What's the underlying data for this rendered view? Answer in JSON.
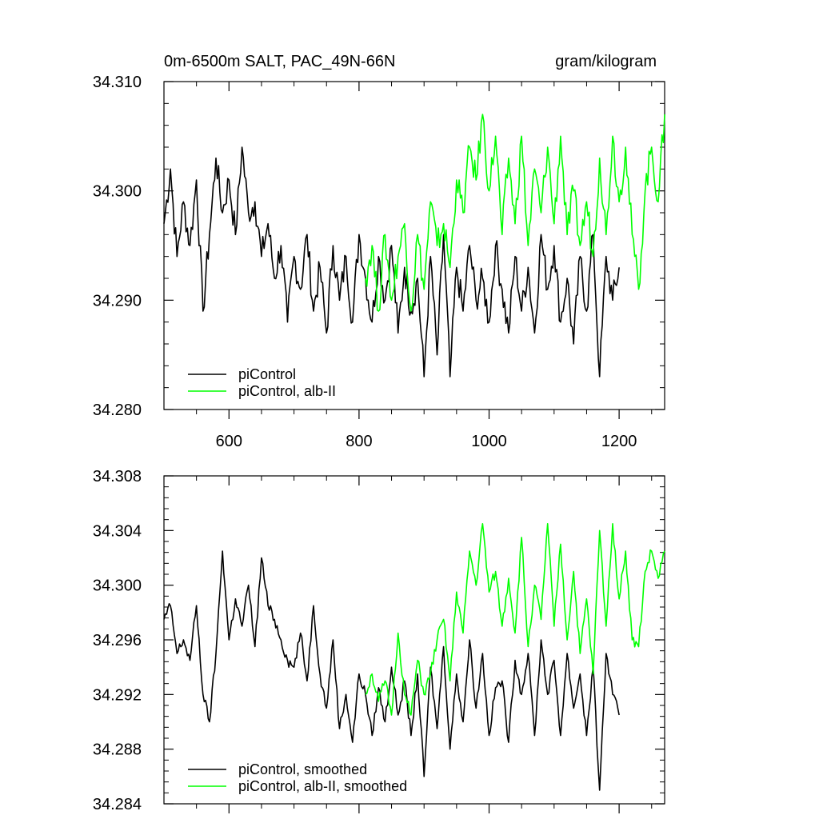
{
  "figure": {
    "colors": {
      "series_black": "#000000",
      "series_green": "#00ff00",
      "axis": "#000000"
    }
  },
  "chart_data": [
    {
      "type": "line",
      "title_left": "0m-6500m SALT, PAC_49N-66N",
      "title_right": "gram/kilogram",
      "xlabel": "",
      "ylabel": "",
      "xlim": [
        500,
        1270
      ],
      "ylim": [
        34.28,
        34.31
      ],
      "xticks": [
        600,
        800,
        1000,
        1200
      ],
      "xtick_labels": [
        "600",
        "800",
        "1000",
        "1200"
      ],
      "yticks": [
        34.28,
        34.29,
        34.3,
        34.31
      ],
      "ytick_labels": [
        "34.280",
        "34.290",
        "34.300",
        "34.310"
      ],
      "legend": [
        "piControl",
        "piControl, alb-II"
      ],
      "legend_location": "lower-left",
      "series": [
        {
          "name": "piControl",
          "color": "#000000",
          "x": [
            500,
            510,
            520,
            530,
            540,
            550,
            560,
            570,
            580,
            590,
            600,
            610,
            620,
            630,
            640,
            650,
            660,
            670,
            680,
            690,
            700,
            710,
            720,
            730,
            740,
            750,
            760,
            770,
            780,
            790,
            800,
            810,
            820,
            830,
            840,
            850,
            860,
            870,
            880,
            890,
            900,
            910,
            920,
            930,
            940,
            950,
            960,
            970,
            980,
            990,
            1000,
            1010,
            1020,
            1030,
            1040,
            1050,
            1060,
            1070,
            1080,
            1090,
            1100,
            1110,
            1120,
            1130,
            1140,
            1150,
            1160,
            1170,
            1180,
            1190,
            1200
          ],
          "values": [
            34.297,
            34.302,
            34.294,
            34.299,
            34.295,
            34.301,
            34.289,
            34.296,
            34.303,
            34.298,
            34.301,
            34.296,
            34.304,
            34.298,
            34.299,
            34.294,
            34.297,
            34.292,
            34.295,
            34.288,
            34.294,
            34.291,
            34.296,
            34.289,
            34.293,
            34.287,
            34.295,
            34.29,
            34.294,
            34.288,
            34.296,
            34.292,
            34.288,
            34.294,
            34.29,
            34.295,
            34.287,
            34.293,
            34.289,
            34.292,
            34.283,
            34.294,
            34.285,
            34.296,
            34.283,
            34.293,
            34.289,
            34.295,
            34.29,
            34.292,
            34.288,
            34.295,
            34.291,
            34.287,
            34.294,
            34.289,
            34.293,
            34.287,
            34.296,
            34.291,
            34.295,
            34.288,
            34.292,
            34.286,
            34.294,
            34.289,
            34.296,
            34.283,
            34.294,
            34.29,
            34.293
          ]
        },
        {
          "name": "piControl, alb-II",
          "color": "#00ff00",
          "x": [
            810,
            820,
            830,
            840,
            850,
            860,
            870,
            880,
            890,
            900,
            910,
            920,
            930,
            940,
            950,
            960,
            970,
            980,
            990,
            1000,
            1010,
            1020,
            1030,
            1040,
            1050,
            1060,
            1070,
            1080,
            1090,
            1100,
            1110,
            1120,
            1130,
            1140,
            1150,
            1160,
            1170,
            1180,
            1190,
            1200,
            1210,
            1220,
            1230,
            1240,
            1250,
            1260,
            1270
          ],
          "values": [
            34.292,
            34.295,
            34.289,
            34.296,
            34.29,
            34.294,
            34.297,
            34.289,
            34.296,
            34.291,
            34.299,
            34.295,
            34.297,
            34.293,
            34.301,
            34.298,
            34.304,
            34.301,
            34.307,
            34.3,
            34.305,
            34.296,
            34.303,
            34.297,
            34.305,
            34.295,
            34.302,
            34.298,
            34.304,
            34.297,
            34.305,
            34.296,
            34.3,
            34.295,
            34.299,
            34.294,
            34.303,
            34.296,
            34.305,
            34.299,
            34.304,
            34.296,
            34.291,
            34.3,
            34.304,
            34.299,
            34.307
          ]
        }
      ]
    },
    {
      "type": "line",
      "xlabel": "",
      "ylabel": "",
      "xlim": [
        500,
        1270
      ],
      "ylim": [
        34.284,
        34.308
      ],
      "xticks": [
        600,
        800,
        1000,
        1200
      ],
      "yticks": [
        34.284,
        34.288,
        34.292,
        34.296,
        34.3,
        34.304,
        34.308
      ],
      "ytick_labels": [
        "34.284",
        "34.288",
        "34.292",
        "34.296",
        "34.300",
        "34.304",
        "34.308"
      ],
      "legend": [
        "piControl, smoothed",
        "piControl, alb-II, smoothed"
      ],
      "legend_location": "lower-left",
      "series": [
        {
          "name": "piControl, smoothed",
          "color": "#000000",
          "x": [
            500,
            510,
            520,
            530,
            540,
            550,
            560,
            570,
            580,
            590,
            600,
            610,
            620,
            630,
            640,
            650,
            660,
            670,
            680,
            690,
            700,
            710,
            720,
            730,
            740,
            750,
            760,
            770,
            780,
            790,
            800,
            810,
            820,
            830,
            840,
            850,
            860,
            870,
            880,
            890,
            900,
            910,
            920,
            930,
            940,
            950,
            960,
            970,
            980,
            990,
            1000,
            1010,
            1020,
            1030,
            1040,
            1050,
            1060,
            1070,
            1080,
            1090,
            1100,
            1110,
            1120,
            1130,
            1140,
            1150,
            1160,
            1170,
            1180,
            1190,
            1200
          ],
          "values": [
            34.2975,
            34.2985,
            34.295,
            34.296,
            34.2945,
            34.2985,
            34.292,
            34.29,
            34.295,
            34.3025,
            34.296,
            34.299,
            34.297,
            34.3,
            34.2955,
            34.302,
            34.2985,
            34.2975,
            34.296,
            34.2945,
            34.294,
            34.2965,
            34.293,
            34.2985,
            34.2935,
            34.291,
            34.296,
            34.2895,
            34.292,
            34.2885,
            34.2935,
            34.292,
            34.289,
            34.2925,
            34.29,
            34.294,
            34.2905,
            34.293,
            34.289,
            34.2935,
            34.286,
            34.294,
            34.2895,
            34.2955,
            34.288,
            34.2935,
            34.29,
            34.296,
            34.291,
            34.295,
            34.289,
            34.2925,
            34.293,
            34.2885,
            34.2945,
            34.292,
            34.295,
            34.289,
            34.296,
            34.292,
            34.2945,
            34.289,
            34.295,
            34.291,
            34.2935,
            34.289,
            34.294,
            34.285,
            34.295,
            34.292,
            34.2905
          ]
        },
        {
          "name": "piControl, alb-II, smoothed",
          "color": "#00ff00",
          "x": [
            810,
            820,
            830,
            840,
            850,
            860,
            870,
            880,
            890,
            900,
            910,
            920,
            930,
            940,
            950,
            960,
            970,
            980,
            990,
            1000,
            1010,
            1020,
            1030,
            1040,
            1050,
            1060,
            1070,
            1080,
            1090,
            1100,
            1110,
            1120,
            1130,
            1140,
            1150,
            1160,
            1170,
            1180,
            1190,
            1200,
            1210,
            1220,
            1230,
            1240,
            1250,
            1260,
            1270
          ],
          "values": [
            34.292,
            34.2935,
            34.2915,
            34.293,
            34.2905,
            34.2965,
            34.292,
            34.2905,
            34.2945,
            34.292,
            34.2935,
            34.296,
            34.2975,
            34.293,
            34.2995,
            34.2965,
            34.3025,
            34.3,
            34.3045,
            34.2995,
            34.301,
            34.297,
            34.3005,
            34.2965,
            34.3035,
            34.2955,
            34.3,
            34.2975,
            34.3045,
            34.297,
            34.303,
            34.296,
            34.301,
            34.295,
            34.299,
            34.2935,
            34.304,
            34.297,
            34.3045,
            34.299,
            34.3025,
            34.296,
            34.2955,
            34.301,
            34.3025,
            34.3005,
            34.3025
          ]
        }
      ]
    }
  ]
}
